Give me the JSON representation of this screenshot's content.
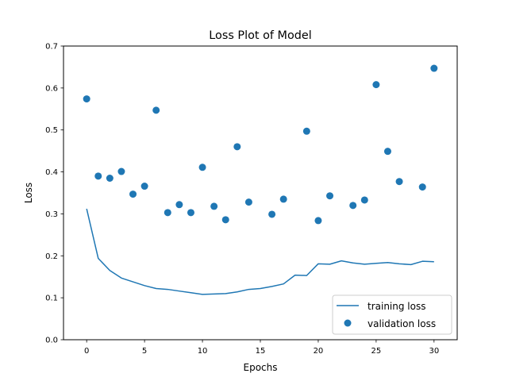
{
  "chart_data": {
    "type": "line",
    "title": "Loss Plot of Model",
    "xlabel": "Epochs",
    "ylabel": "Loss",
    "xlim": [
      -2,
      32
    ],
    "ylim": [
      0,
      0.7
    ],
    "xticks": [
      0,
      5,
      10,
      15,
      20,
      25,
      30
    ],
    "yticks": [
      0.0,
      0.1,
      0.2,
      0.3,
      0.4,
      0.5,
      0.6,
      0.7
    ],
    "xtick_labels": [
      "0",
      "5",
      "10",
      "15",
      "20",
      "25",
      "30"
    ],
    "ytick_labels": [
      "0.0",
      "0.1",
      "0.2",
      "0.3",
      "0.4",
      "0.5",
      "0.6",
      "0.7"
    ],
    "grid": false,
    "legend_position": "lower-right",
    "series": [
      {
        "name": "training loss",
        "kind": "line",
        "color": "#1f77b4",
        "x": [
          0,
          1,
          2,
          3,
          4,
          5,
          6,
          7,
          8,
          9,
          10,
          11,
          12,
          13,
          14,
          15,
          16,
          17,
          18,
          19,
          20,
          21,
          22,
          23,
          24,
          25,
          26,
          27,
          28,
          29,
          30
        ],
        "y": [
          0.312,
          0.194,
          0.165,
          0.147,
          0.138,
          0.129,
          0.122,
          0.12,
          0.116,
          0.112,
          0.108,
          0.109,
          0.11,
          0.114,
          0.12,
          0.122,
          0.127,
          0.133,
          0.154,
          0.153,
          0.181,
          0.18,
          0.188,
          0.183,
          0.18,
          0.182,
          0.184,
          0.181,
          0.179,
          0.187,
          0.186
        ]
      },
      {
        "name": "validation loss",
        "kind": "scatter",
        "color": "#1f77b4",
        "x": [
          0,
          1,
          2,
          3,
          4,
          5,
          6,
          7,
          8,
          9,
          10,
          11,
          12,
          13,
          14,
          16,
          17,
          19,
          20,
          21,
          23,
          24,
          25,
          26,
          27,
          29,
          30
        ],
        "y": [
          0.574,
          0.39,
          0.385,
          0.401,
          0.347,
          0.366,
          0.547,
          0.303,
          0.322,
          0.303,
          0.411,
          0.318,
          0.286,
          0.46,
          0.328,
          0.299,
          0.335,
          0.497,
          0.284,
          0.343,
          0.32,
          0.333,
          0.608,
          0.449,
          0.377,
          0.364,
          0.647
        ]
      }
    ]
  }
}
